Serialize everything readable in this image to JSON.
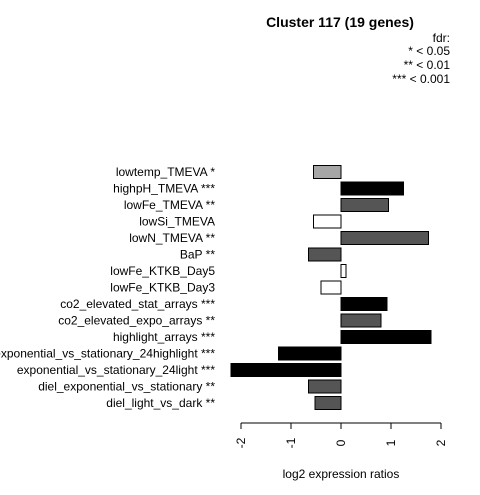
{
  "chart_data": {
    "type": "bar",
    "orientation": "horizontal",
    "title": "Cluster 117 (19 genes)",
    "legend": {
      "title": "fdr:",
      "entries": [
        "* < 0.05",
        "** < 0.01",
        "*** < 0.001"
      ],
      "placement": "top-right"
    },
    "xlabel": "log2 expression ratios",
    "xlim": [
      -2.2,
      2.0
    ],
    "xticks": [
      -2,
      -1,
      0,
      1,
      2
    ],
    "xtick_labels": [
      "-2",
      "-1",
      "0",
      "1",
      "2"
    ],
    "categories": [
      "lowtemp_TMEVA *",
      "highpH_TMEVA ***",
      "lowFe_TMEVA **",
      "lowSi_TMEVA",
      "lowN_TMEVA **",
      "BaP **",
      "lowFe_KTKB_Day5",
      "lowFe_KTKB_Day3",
      "co2_elevated_stat_arrays ***",
      "co2_elevated_expo_arrays **",
      "highlight_arrays ***",
      "exponential_vs_stationary_24highlight ***",
      "exponential_vs_stationary_24light ***",
      "diel_exponential_vs_stationary **",
      "diel_light_vs_dark **"
    ],
    "values": [
      -0.55,
      1.25,
      0.95,
      -0.55,
      1.75,
      -0.65,
      0.1,
      -0.4,
      0.92,
      0.8,
      1.8,
      -1.25,
      -2.2,
      -0.65,
      -0.52
    ],
    "bar_colors": [
      "#a6a6a6",
      "#000000",
      "#555555",
      "#ffffff",
      "#555555",
      "#555555",
      "#ffffff",
      "#ffffff",
      "#000000",
      "#555555",
      "#000000",
      "#000000",
      "#000000",
      "#555555",
      "#555555"
    ]
  }
}
